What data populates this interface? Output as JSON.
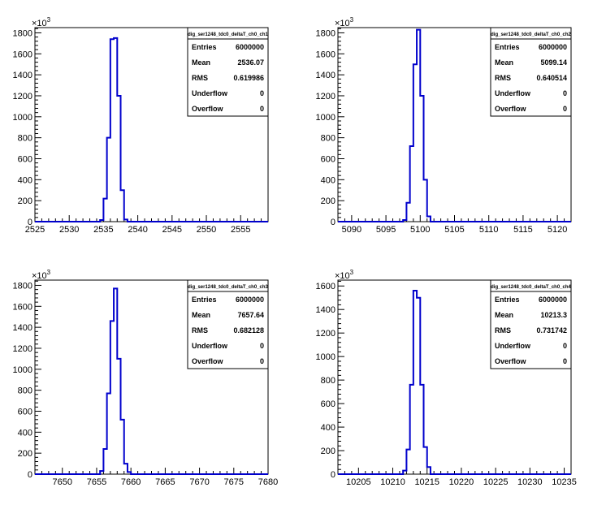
{
  "chart_data": [
    {
      "type": "histogram",
      "title": "dig_ser1248_tdc0_deltaT_ch0_ch1",
      "exponent_label": "×10",
      "exponent_sup": "3",
      "xlim": [
        2525,
        2559
      ],
      "ylim": [
        0,
        1850
      ],
      "x_ticks": [
        2525,
        2530,
        2535,
        2540,
        2545,
        2550,
        2555
      ],
      "y_ticks": [
        0,
        200,
        400,
        600,
        800,
        1000,
        1200,
        1400,
        1600,
        1800
      ],
      "bin_width": 0.5,
      "bins": [
        [
          2534.5,
          15
        ],
        [
          2535,
          220
        ],
        [
          2535.5,
          800
        ],
        [
          2536,
          1740
        ],
        [
          2536.5,
          1750
        ],
        [
          2537,
          1200
        ],
        [
          2537.5,
          300
        ],
        [
          2538,
          20
        ]
      ],
      "stats": [
        {
          "label": "Entries",
          "value": "6000000"
        },
        {
          "label": "Mean",
          "value": "2536.07"
        },
        {
          "label": "RMS",
          "value": "0.619986"
        },
        {
          "label": "Underflow",
          "value": "0"
        },
        {
          "label": "Overflow",
          "value": "0"
        }
      ]
    },
    {
      "type": "histogram",
      "title": "dig_ser1248_tdc0_deltaT_ch0_ch2",
      "exponent_label": "×10",
      "exponent_sup": "3",
      "xlim": [
        5088,
        5122
      ],
      "ylim": [
        0,
        1850
      ],
      "x_ticks": [
        5090,
        5095,
        5100,
        5105,
        5110,
        5115,
        5120
      ],
      "y_ticks": [
        0,
        200,
        400,
        600,
        800,
        1000,
        1200,
        1400,
        1600,
        1800
      ],
      "bin_width": 0.5,
      "bins": [
        [
          5097.5,
          15
        ],
        [
          5098,
          180
        ],
        [
          5098.5,
          720
        ],
        [
          5099,
          1500
        ],
        [
          5099.5,
          1830
        ],
        [
          5100,
          1200
        ],
        [
          5100.5,
          400
        ],
        [
          5101,
          50
        ]
      ],
      "stats": [
        {
          "label": "Entries",
          "value": "6000000"
        },
        {
          "label": "Mean",
          "value": "5099.14"
        },
        {
          "label": "RMS",
          "value": "0.640514"
        },
        {
          "label": "Underflow",
          "value": "0"
        },
        {
          "label": "Overflow",
          "value": "0"
        }
      ]
    },
    {
      "type": "histogram",
      "title": "dig_ser1248_tdc0_deltaT_ch0_ch3",
      "exponent_label": "×10",
      "exponent_sup": "3",
      "xlim": [
        7646,
        7680
      ],
      "ylim": [
        0,
        1850
      ],
      "x_ticks": [
        7650,
        7655,
        7660,
        7665,
        7670,
        7675,
        7680
      ],
      "y_ticks": [
        0,
        200,
        400,
        600,
        800,
        1000,
        1200,
        1400,
        1600,
        1800
      ],
      "bin_width": 0.5,
      "bins": [
        [
          7655.5,
          30
        ],
        [
          7656,
          240
        ],
        [
          7656.5,
          770
        ],
        [
          7657,
          1460
        ],
        [
          7657.5,
          1770
        ],
        [
          7658,
          1100
        ],
        [
          7658.5,
          520
        ],
        [
          7659,
          100
        ],
        [
          7659.5,
          20
        ]
      ],
      "stats": [
        {
          "label": "Entries",
          "value": "6000000"
        },
        {
          "label": "Mean",
          "value": "7657.64"
        },
        {
          "label": "RMS",
          "value": "0.682128"
        },
        {
          "label": "Underflow",
          "value": "0"
        },
        {
          "label": "Overflow",
          "value": "0"
        }
      ]
    },
    {
      "type": "histogram",
      "title": "dig_ser1248_tdc0_deltaT_ch0_ch4",
      "exponent_label": "×10",
      "exponent_sup": "3",
      "xlim": [
        10202,
        10236
      ],
      "ylim": [
        0,
        1650
      ],
      "x_ticks": [
        10205,
        10210,
        10215,
        10220,
        10225,
        10230,
        10235
      ],
      "y_ticks": [
        0,
        200,
        400,
        600,
        800,
        1000,
        1200,
        1400,
        1600
      ],
      "bin_width": 0.5,
      "bins": [
        [
          10211.5,
          30
        ],
        [
          10212,
          210
        ],
        [
          10212.5,
          760
        ],
        [
          10213,
          1560
        ],
        [
          10213.5,
          1500
        ],
        [
          10214,
          760
        ],
        [
          10214.5,
          230
        ],
        [
          10215,
          60
        ]
      ],
      "stats": [
        {
          "label": "Entries",
          "value": "6000000"
        },
        {
          "label": "Mean",
          "value": "10213.3"
        },
        {
          "label": "RMS",
          "value": "0.731742"
        },
        {
          "label": "Underflow",
          "value": "0"
        },
        {
          "label": "Overflow",
          "value": "0"
        }
      ]
    }
  ],
  "colors": {
    "histogram_line": "#0000cc",
    "axes": "#000000",
    "background": "#ffffff"
  }
}
